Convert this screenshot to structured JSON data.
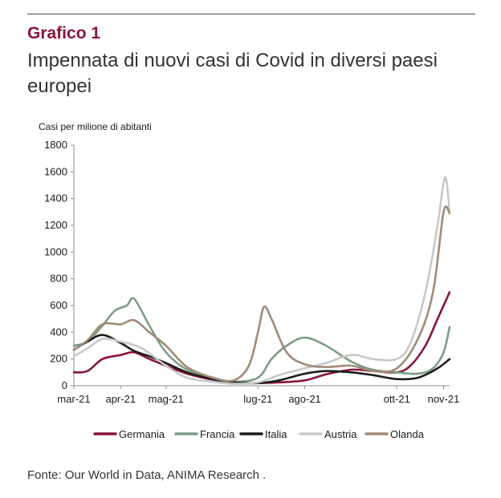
{
  "header": {
    "label": "Grafico 1",
    "title": "Impennata di nuovi casi di Covid in diversi paesi europei"
  },
  "footer": {
    "source": "Fonte: Our World in Data, ANIMA Research ."
  },
  "chart_data": {
    "type": "line",
    "title": "Impennata di nuovi casi di Covid in diversi paesi europei",
    "ylabel": "Casi per milione di abitanti",
    "xlabel": "",
    "ylim": [
      0,
      1800
    ],
    "yticks": [
      "0",
      "200",
      "400",
      "600",
      "800",
      "1000",
      "1200",
      "1400",
      "1600",
      "1800"
    ],
    "xticks": [
      "mar-21",
      "apr-21",
      "mag-21",
      "lug-21",
      "ago-21",
      "ott-21",
      "nov-21"
    ],
    "xtick_dates": [
      "2021-03-01",
      "2021-04-01",
      "2021-05-01",
      "2021-07-01",
      "2021-08-01",
      "2021-10-01",
      "2021-11-01"
    ],
    "xrange": [
      "2021-03-01",
      "2021-11-05"
    ],
    "grid": false,
    "legend_position": "bottom",
    "series": [
      {
        "name": "Germania",
        "color": "#8a1538",
        "x": [
          "2021-03-01",
          "2021-03-10",
          "2021-03-20",
          "2021-04-01",
          "2021-04-10",
          "2021-04-20",
          "2021-05-01",
          "2021-05-15",
          "2021-06-01",
          "2021-06-15",
          "2021-07-01",
          "2021-07-15",
          "2021-08-01",
          "2021-08-15",
          "2021-09-01",
          "2021-09-15",
          "2021-10-01",
          "2021-10-10",
          "2021-10-20",
          "2021-10-28",
          "2021-11-05"
        ],
        "y": [
          100,
          110,
          200,
          230,
          250,
          200,
          150,
          90,
          45,
          20,
          20,
          25,
          40,
          85,
          120,
          110,
          100,
          150,
          300,
          500,
          700
        ]
      },
      {
        "name": "Francia",
        "color": "#7a9e86",
        "x": [
          "2021-03-01",
          "2021-03-10",
          "2021-03-20",
          "2021-03-28",
          "2021-04-05",
          "2021-04-10",
          "2021-04-20",
          "2021-05-01",
          "2021-05-15",
          "2021-06-01",
          "2021-06-15",
          "2021-07-01",
          "2021-07-10",
          "2021-07-20",
          "2021-08-01",
          "2021-08-15",
          "2021-09-01",
          "2021-09-15",
          "2021-10-01",
          "2021-10-15",
          "2021-10-25",
          "2021-11-01",
          "2021-11-05"
        ],
        "y": [
          300,
          330,
          450,
          560,
          600,
          650,
          450,
          250,
          120,
          60,
          30,
          60,
          200,
          300,
          360,
          300,
          180,
          120,
          100,
          90,
          130,
          250,
          440
        ]
      },
      {
        "name": "Italia",
        "color": "#1d1d1d",
        "x": [
          "2021-03-01",
          "2021-03-10",
          "2021-03-20",
          "2021-04-01",
          "2021-04-10",
          "2021-04-20",
          "2021-05-01",
          "2021-05-15",
          "2021-06-01",
          "2021-06-15",
          "2021-07-01",
          "2021-07-15",
          "2021-08-01",
          "2021-08-15",
          "2021-09-01",
          "2021-09-15",
          "2021-10-01",
          "2021-10-15",
          "2021-10-28",
          "2021-11-05"
        ],
        "y": [
          270,
          330,
          380,
          320,
          260,
          220,
          170,
          100,
          50,
          25,
          20,
          40,
          90,
          110,
          100,
          80,
          50,
          60,
          130,
          200
        ]
      },
      {
        "name": "Austria",
        "color": "#c8c8c8",
        "x": [
          "2021-03-01",
          "2021-03-10",
          "2021-03-20",
          "2021-04-01",
          "2021-04-15",
          "2021-05-01",
          "2021-05-15",
          "2021-06-01",
          "2021-06-15",
          "2021-07-01",
          "2021-07-15",
          "2021-08-01",
          "2021-08-15",
          "2021-09-01",
          "2021-09-15",
          "2021-10-01",
          "2021-10-10",
          "2021-10-20",
          "2021-10-28",
          "2021-11-02",
          "2021-11-05"
        ],
        "y": [
          220,
          280,
          350,
          330,
          280,
          150,
          60,
          30,
          15,
          25,
          80,
          130,
          170,
          230,
          200,
          200,
          320,
          700,
          1200,
          1560,
          1290
        ]
      },
      {
        "name": "Olanda",
        "color": "#a08b78",
        "x": [
          "2021-03-01",
          "2021-03-10",
          "2021-03-20",
          "2021-04-01",
          "2021-04-10",
          "2021-04-20",
          "2021-05-01",
          "2021-05-15",
          "2021-06-01",
          "2021-06-15",
          "2021-06-25",
          "2021-07-01",
          "2021-07-05",
          "2021-07-10",
          "2021-07-20",
          "2021-08-01",
          "2021-08-15",
          "2021-09-01",
          "2021-09-15",
          "2021-10-01",
          "2021-10-15",
          "2021-10-25",
          "2021-11-01",
          "2021-11-05"
        ],
        "y": [
          270,
          340,
          460,
          460,
          490,
          400,
          300,
          140,
          60,
          40,
          150,
          400,
          590,
          500,
          250,
          160,
          140,
          150,
          110,
          130,
          350,
          700,
          1300,
          1290
        ]
      }
    ]
  }
}
